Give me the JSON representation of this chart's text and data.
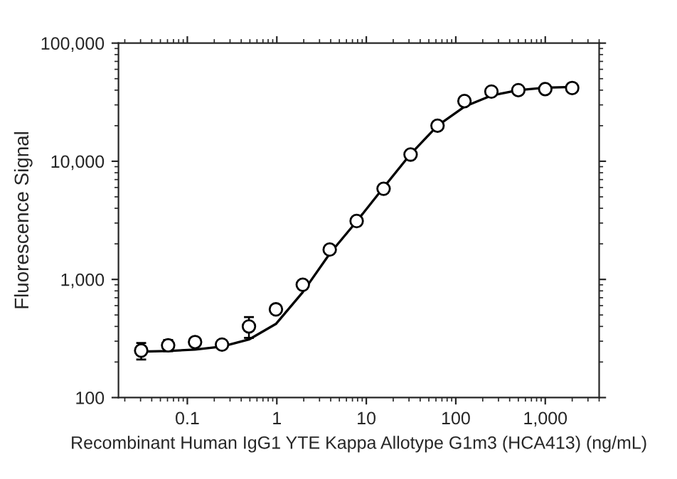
{
  "chart_data": {
    "type": "scatter",
    "xlabel": "Recombinant Human IgG1 YTE Kappa Allotype G1m3 (HCA413) (ng/mL)",
    "ylabel": "Fluorescence Signal",
    "log": "xy",
    "grid": false,
    "legend": false,
    "xlim": [
      0.017,
      4000
    ],
    "ylim": [
      100,
      100000
    ],
    "xticks": [
      0.1,
      1,
      10,
      100,
      {
        "value": 1000,
        "label": "1,000"
      }
    ],
    "yticks": [
      100,
      {
        "value": 1000,
        "label": "1,000"
      },
      {
        "value": 10000,
        "label": "10,000"
      },
      {
        "value": 100000,
        "label": "100,000"
      }
    ],
    "series": [
      {
        "color": "#000000",
        "marker": "circle",
        "x": [
          0.0305,
          0.061,
          0.122,
          0.244,
          0.488,
          0.977,
          1.95,
          3.9,
          7.8,
          15.6,
          31.25,
          62.5,
          125,
          250,
          500,
          1000,
          2000
        ],
        "values": [
          250,
          277,
          295,
          281,
          400,
          558,
          902,
          1790,
          3120,
          5850,
          11400,
          20000,
          32300,
          38900,
          40000,
          40800,
          41700
        ],
        "errors": [
          40,
          30,
          15,
          15,
          80,
          null,
          null,
          null,
          null,
          null,
          null,
          null,
          null,
          null,
          null,
          null,
          null
        ]
      },
      {
        "type": "line",
        "color": "#000000",
        "marker": "none",
        "line_style": "solid",
        "x": [
          0.0305,
          0.061,
          0.122,
          0.244,
          0.488,
          0.977,
          1.95,
          3.9,
          7.8,
          15.6,
          31.25,
          62.5,
          125,
          250,
          500,
          1000,
          2000
        ],
        "values": [
          245,
          248,
          255,
          270,
          310,
          420,
          780,
          1650,
          3100,
          6000,
          11500,
          20000,
          29000,
          36000,
          40000,
          42000,
          42500
        ]
      }
    ]
  }
}
